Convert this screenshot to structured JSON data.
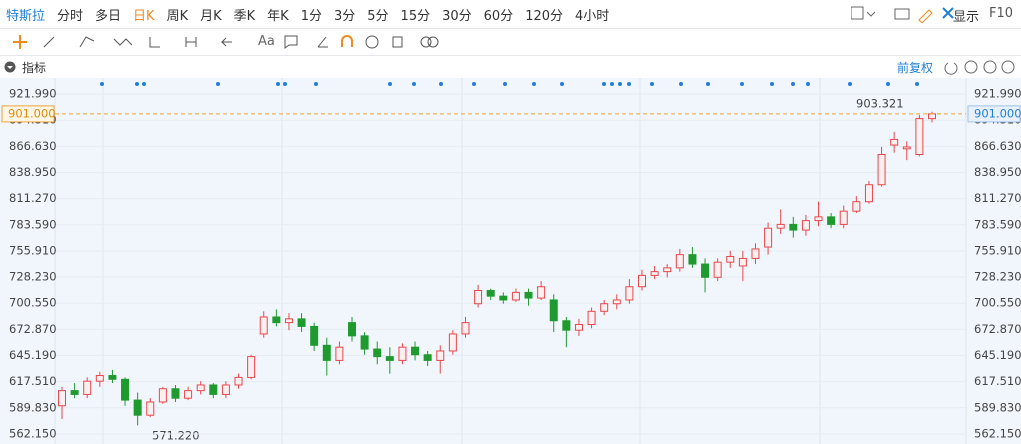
{
  "toolbar": {
    "tabs": [
      "特斯拉",
      "分时",
      "多日",
      "日K",
      "周K",
      "月K",
      "季K",
      "年K",
      "1分",
      "3分",
      "5分",
      "15分",
      "30分",
      "60分",
      "120分",
      "4小时"
    ],
    "display": "显示",
    "f10": "F10",
    "text_tool": "Aa"
  },
  "indicator_bar": {
    "label": "指标",
    "adjust": "前复权"
  },
  "chart_data": {
    "type": "candlestick",
    "open": [
      592,
      608,
      604,
      618,
      624,
      620,
      598,
      582,
      596,
      610,
      600,
      608,
      614,
      604,
      614,
      622,
      668,
      686,
      680,
      684,
      676,
      656,
      640,
      680,
      666,
      652,
      644,
      640,
      654,
      646,
      640,
      650,
      668,
      700,
      714,
      708,
      704,
      712,
      706,
      704,
      682,
      672,
      678,
      692,
      700,
      704,
      718,
      730,
      734,
      738,
      752,
      742,
      728,
      744,
      740,
      748,
      760,
      780,
      784,
      778,
      788,
      792,
      784,
      798,
      808,
      826,
      868,
      864,
      858,
      896
    ],
    "high": [
      612,
      616,
      622,
      628,
      630,
      622,
      606,
      600,
      612,
      614,
      612,
      618,
      616,
      618,
      626,
      646,
      692,
      694,
      690,
      690,
      680,
      664,
      660,
      686,
      670,
      660,
      654,
      658,
      660,
      650,
      656,
      672,
      686,
      720,
      716,
      712,
      716,
      716,
      724,
      710,
      686,
      684,
      696,
      704,
      710,
      726,
      736,
      740,
      742,
      758,
      760,
      748,
      748,
      756,
      756,
      764,
      786,
      800,
      792,
      794,
      808,
      796,
      804,
      814,
      830,
      866,
      882,
      872,
      900,
      903.321
    ],
    "low": [
      578,
      600,
      600,
      612,
      616,
      592,
      571.22,
      580,
      594,
      596,
      598,
      604,
      600,
      600,
      610,
      620,
      664,
      676,
      672,
      670,
      650,
      624,
      636,
      660,
      646,
      636,
      626,
      636,
      640,
      634,
      626,
      646,
      664,
      696,
      704,
      700,
      702,
      698,
      704,
      670,
      654,
      666,
      674,
      688,
      694,
      700,
      714,
      726,
      728,
      734,
      738,
      712,
      724,
      738,
      724,
      742,
      752,
      774,
      770,
      772,
      782,
      780,
      780,
      796,
      806,
      824,
      860,
      852,
      856,
      892
    ],
    "close": [
      608,
      604,
      618,
      624,
      620,
      598,
      582,
      596,
      610,
      600,
      608,
      614,
      604,
      614,
      622,
      644,
      686,
      680,
      684,
      676,
      656,
      640,
      654,
      666,
      652,
      644,
      640,
      654,
      646,
      640,
      650,
      668,
      680,
      714,
      708,
      704,
      712,
      706,
      718,
      682,
      672,
      678,
      692,
      700,
      704,
      718,
      730,
      734,
      738,
      752,
      742,
      728,
      744,
      750,
      748,
      758,
      780,
      784,
      778,
      788,
      792,
      784,
      798,
      808,
      826,
      858,
      874,
      866,
      896,
      901
    ],
    "rise_color": "#e8474c",
    "fall_color": "#1f9a2e",
    "ylim": [
      551.5,
      939
    ],
    "yticks": [
      {
        "value": 562.15,
        "label": "562.150"
      },
      {
        "value": 589.83,
        "label": "589.830"
      },
      {
        "value": 617.51,
        "label": "617.510"
      },
      {
        "value": 645.19,
        "label": "645.190"
      },
      {
        "value": 672.87,
        "label": "672.870"
      },
      {
        "value": 700.55,
        "label": "700.550"
      },
      {
        "value": 728.23,
        "label": "728.230"
      },
      {
        "value": 755.91,
        "label": "755.910"
      },
      {
        "value": 783.59,
        "label": "783.590"
      },
      {
        "value": 811.27,
        "label": "811.270"
      },
      {
        "value": 838.95,
        "label": "838.950"
      },
      {
        "value": 866.63,
        "label": "866.630"
      },
      {
        "value": 894.31,
        "label": "894.310"
      },
      {
        "value": 921.99,
        "label": "921.990"
      }
    ],
    "price_line": {
      "value": 901,
      "label": "901.000"
    },
    "max_label": "903.321",
    "min_label": "571.220",
    "grid": true
  }
}
